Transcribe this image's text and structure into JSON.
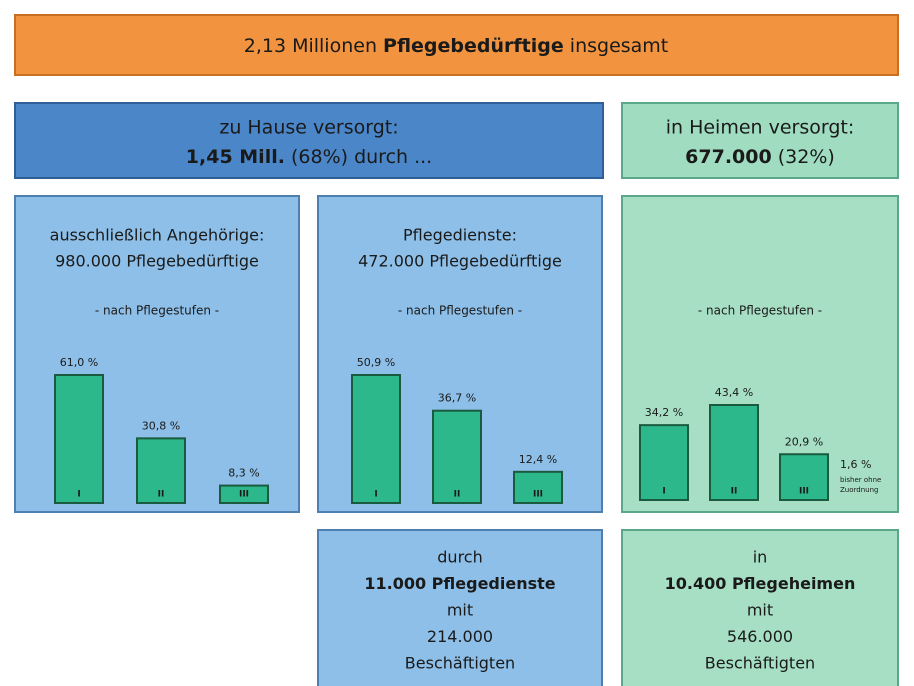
{
  "header": {
    "parts": [
      "2,13 Millionen ",
      "Pflegebedürftige",
      " insgesamt"
    ]
  },
  "home": {
    "line1": "zu Hause versorgt:",
    "line2": [
      "1,45 Mill.",
      " (68%) durch ..."
    ]
  },
  "heime": {
    "line1": "in Heimen versorgt:",
    "line2": [
      "677.000",
      " (32%)"
    ]
  },
  "chart_data": [
    {
      "type": "bar",
      "title": "ausschließlich Angehörige:",
      "subtitle": "980.000 Pflegebedürftige",
      "note": "- nach Pflegestufen -",
      "categories": [
        "I",
        "II",
        "III"
      ],
      "values": [
        61.0,
        30.8,
        8.3
      ],
      "value_labels": [
        "61,0 %",
        "30,8 %",
        "8,3 %"
      ],
      "color": "#2db88b"
    },
    {
      "type": "bar",
      "title": "Pflegedienste:",
      "subtitle": "472.000 Pflegebedürftige",
      "note": "- nach Pflegestufen -",
      "categories": [
        "I",
        "II",
        "III"
      ],
      "values": [
        50.9,
        36.7,
        12.4
      ],
      "value_labels": [
        "50,9 %",
        "36,7 %",
        "12,4 %"
      ],
      "color": "#2db88b"
    },
    {
      "type": "bar",
      "note": "- nach Pflegestufen -",
      "categories": [
        "I",
        "II",
        "III"
      ],
      "values": [
        34.2,
        43.4,
        20.9
      ],
      "value_labels": [
        "34,2 %",
        "43,4 %",
        "20,9 %"
      ],
      "color": "#2db88b",
      "annotation": "1,6 %",
      "annotation_note": [
        "bisher ohne",
        "Zuordnung"
      ]
    }
  ],
  "dienste": {
    "lines": [
      "durch",
      "11.000 Pflegedienste",
      "mit",
      "214.000",
      "Beschäftigten"
    ]
  },
  "heimbox": {
    "lines": [
      "in",
      "10.400 Pflegeheimen",
      "mit",
      "546.000",
      "Beschäftigten"
    ]
  }
}
